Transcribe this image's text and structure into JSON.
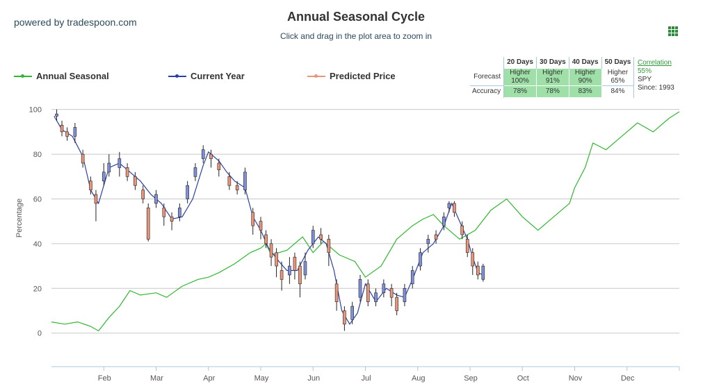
{
  "header": {
    "powered_by": "powered by tradespoon.com",
    "title": "Annual Seasonal Cycle",
    "subtitle": "Click and drag in the plot area to zoom in"
  },
  "legend": [
    {
      "label": "Annual Seasonal",
      "color": "#2eb82e"
    },
    {
      "label": "Current Year",
      "color": "#2c3fa8"
    },
    {
      "label": "Predicted Price",
      "color": "#e8957a"
    }
  ],
  "stats": {
    "headers": [
      "20 Days",
      "30 Days",
      "40 Days",
      "50 Days"
    ],
    "forecast_label": "Forecast",
    "forecast": [
      {
        "dir": "Higher",
        "pct": "100%"
      },
      {
        "dir": "Higher",
        "pct": "91%"
      },
      {
        "dir": "Higher",
        "pct": "90%"
      },
      {
        "dir": "Higher",
        "pct": "65%"
      }
    ],
    "accuracy_label": "Accuracy",
    "accuracy": [
      "78%",
      "78%",
      "83%",
      "84%"
    ],
    "highlight_color": "#9ee0a8"
  },
  "correlation": {
    "label": "Correlation",
    "value": "55%",
    "symbol": "SPY",
    "since": "Since: 1993"
  },
  "chart_data": {
    "type": "line",
    "ylabel": "Percentage",
    "ylim": [
      -15,
      103
    ],
    "yticks": [
      0,
      20,
      40,
      60,
      80,
      100
    ],
    "xlim": [
      0,
      12
    ],
    "xticks": [
      {
        "label": "Feb",
        "x": 1
      },
      {
        "label": "Mar",
        "x": 2
      },
      {
        "label": "Apr",
        "x": 3
      },
      {
        "label": "May",
        "x": 4
      },
      {
        "label": "Jun",
        "x": 5
      },
      {
        "label": "Jul",
        "x": 6
      },
      {
        "label": "Aug",
        "x": 7
      },
      {
        "label": "Sep",
        "x": 8
      },
      {
        "label": "Oct",
        "x": 9
      },
      {
        "label": "Nov",
        "x": 10
      },
      {
        "label": "Dec",
        "x": 11
      }
    ],
    "grid": true,
    "legend_position": "top-left",
    "series": [
      {
        "name": "Annual Seasonal",
        "color": "#2eb82e",
        "points": [
          [
            0,
            5
          ],
          [
            0.25,
            4
          ],
          [
            0.5,
            5
          ],
          [
            0.75,
            3
          ],
          [
            0.9,
            1
          ],
          [
            1.1,
            7
          ],
          [
            1.3,
            12
          ],
          [
            1.5,
            19
          ],
          [
            1.7,
            17
          ],
          [
            2.0,
            18
          ],
          [
            2.2,
            16
          ],
          [
            2.5,
            21
          ],
          [
            2.8,
            24
          ],
          [
            3.0,
            25
          ],
          [
            3.2,
            27
          ],
          [
            3.5,
            31
          ],
          [
            3.8,
            36
          ],
          [
            4.0,
            38
          ],
          [
            4.1,
            40
          ],
          [
            4.2,
            35
          ],
          [
            4.5,
            37
          ],
          [
            4.8,
            43
          ],
          [
            5.0,
            36
          ],
          [
            5.2,
            41
          ],
          [
            5.5,
            35
          ],
          [
            5.8,
            32
          ],
          [
            6.0,
            25
          ],
          [
            6.3,
            30
          ],
          [
            6.6,
            42
          ],
          [
            6.9,
            48
          ],
          [
            7.1,
            51
          ],
          [
            7.3,
            53
          ],
          [
            7.5,
            48
          ],
          [
            7.8,
            42
          ],
          [
            8.1,
            46
          ],
          [
            8.4,
            55
          ],
          [
            8.7,
            60
          ],
          [
            9.0,
            52
          ],
          [
            9.3,
            46
          ],
          [
            9.6,
            52
          ],
          [
            9.9,
            58
          ],
          [
            10.0,
            65
          ],
          [
            10.2,
            74
          ],
          [
            10.35,
            85
          ],
          [
            10.6,
            82
          ],
          [
            10.9,
            88
          ],
          [
            11.2,
            94
          ],
          [
            11.5,
            90
          ],
          [
            11.8,
            96
          ],
          [
            12.0,
            99
          ]
        ]
      },
      {
        "name": "Current Year",
        "color": "#2c3fa8",
        "points": [
          [
            0.05,
            97
          ],
          [
            0.2,
            91
          ],
          [
            0.4,
            88
          ],
          [
            0.6,
            79
          ],
          [
            0.75,
            64
          ],
          [
            0.9,
            58
          ],
          [
            1.1,
            74
          ],
          [
            1.3,
            76
          ],
          [
            1.5,
            72
          ],
          [
            1.7,
            68
          ],
          [
            1.9,
            62
          ],
          [
            2.1,
            58
          ],
          [
            2.3,
            51
          ],
          [
            2.5,
            52
          ],
          [
            2.7,
            60
          ],
          [
            2.9,
            75
          ],
          [
            3.0,
            81
          ],
          [
            3.2,
            77
          ],
          [
            3.35,
            72
          ],
          [
            3.5,
            68
          ],
          [
            3.7,
            65
          ],
          [
            3.85,
            52
          ],
          [
            4.0,
            46
          ],
          [
            4.15,
            38
          ],
          [
            4.35,
            32
          ],
          [
            4.5,
            28
          ],
          [
            4.7,
            28
          ],
          [
            4.9,
            37
          ],
          [
            5.1,
            43
          ],
          [
            5.25,
            40
          ],
          [
            5.4,
            28
          ],
          [
            5.55,
            10
          ],
          [
            5.7,
            4
          ],
          [
            5.85,
            9
          ],
          [
            6.0,
            22
          ],
          [
            6.2,
            14
          ],
          [
            6.4,
            20
          ],
          [
            6.6,
            17
          ],
          [
            6.75,
            16
          ],
          [
            6.9,
            24
          ],
          [
            7.1,
            36
          ],
          [
            7.3,
            40
          ],
          [
            7.5,
            48
          ],
          [
            7.65,
            58
          ],
          [
            7.8,
            50
          ],
          [
            7.95,
            42
          ],
          [
            8.05,
            34
          ],
          [
            8.15,
            27
          ],
          [
            8.25,
            26
          ]
        ]
      }
    ],
    "candles": [
      {
        "x": 0.1,
        "o": 97,
        "c": 98,
        "h": 100,
        "l": 95,
        "up": true
      },
      {
        "x": 0.2,
        "o": 93,
        "c": 90,
        "h": 95,
        "l": 88,
        "up": false
      },
      {
        "x": 0.3,
        "o": 90,
        "c": 88,
        "h": 92,
        "l": 86,
        "up": false
      },
      {
        "x": 0.45,
        "o": 88,
        "c": 92,
        "h": 94,
        "l": 85,
        "up": true
      },
      {
        "x": 0.6,
        "o": 80,
        "c": 76,
        "h": 82,
        "l": 74,
        "up": false
      },
      {
        "x": 0.75,
        "o": 68,
        "c": 64,
        "h": 70,
        "l": 62,
        "up": false
      },
      {
        "x": 0.85,
        "o": 62,
        "c": 58,
        "h": 64,
        "l": 50,
        "up": false
      },
      {
        "x": 1.0,
        "o": 68,
        "c": 72,
        "h": 76,
        "l": 66,
        "up": true
      },
      {
        "x": 1.1,
        "o": 72,
        "c": 76,
        "h": 80,
        "l": 70,
        "up": true
      },
      {
        "x": 1.3,
        "o": 74,
        "c": 78,
        "h": 81,
        "l": 70,
        "up": true
      },
      {
        "x": 1.45,
        "o": 74,
        "c": 70,
        "h": 76,
        "l": 68,
        "up": false
      },
      {
        "x": 1.6,
        "o": 70,
        "c": 66,
        "h": 72,
        "l": 64,
        "up": false
      },
      {
        "x": 1.75,
        "o": 64,
        "c": 60,
        "h": 66,
        "l": 58,
        "up": false
      },
      {
        "x": 1.85,
        "o": 56,
        "c": 42,
        "h": 58,
        "l": 41,
        "up": false
      },
      {
        "x": 2.0,
        "o": 58,
        "c": 62,
        "h": 64,
        "l": 56,
        "up": true
      },
      {
        "x": 2.15,
        "o": 56,
        "c": 52,
        "h": 58,
        "l": 48,
        "up": false
      },
      {
        "x": 2.3,
        "o": 52,
        "c": 50,
        "h": 54,
        "l": 46,
        "up": false
      },
      {
        "x": 2.45,
        "o": 52,
        "c": 56,
        "h": 58,
        "l": 50,
        "up": true
      },
      {
        "x": 2.6,
        "o": 60,
        "c": 66,
        "h": 68,
        "l": 58,
        "up": true
      },
      {
        "x": 2.75,
        "o": 70,
        "c": 74,
        "h": 76,
        "l": 68,
        "up": true
      },
      {
        "x": 2.9,
        "o": 78,
        "c": 82,
        "h": 84,
        "l": 76,
        "up": true
      },
      {
        "x": 3.05,
        "o": 80,
        "c": 78,
        "h": 82,
        "l": 74,
        "up": false
      },
      {
        "x": 3.2,
        "o": 76,
        "c": 73,
        "h": 78,
        "l": 70,
        "up": false
      },
      {
        "x": 3.4,
        "o": 70,
        "c": 66,
        "h": 72,
        "l": 64,
        "up": false
      },
      {
        "x": 3.55,
        "o": 66,
        "c": 64,
        "h": 68,
        "l": 62,
        "up": false
      },
      {
        "x": 3.7,
        "o": 64,
        "c": 72,
        "h": 74,
        "l": 62,
        "up": true
      },
      {
        "x": 3.85,
        "o": 54,
        "c": 48,
        "h": 56,
        "l": 44,
        "up": false
      },
      {
        "x": 4.0,
        "o": 50,
        "c": 46,
        "h": 52,
        "l": 42,
        "up": false
      },
      {
        "x": 4.1,
        "o": 44,
        "c": 40,
        "h": 46,
        "l": 38,
        "up": false
      },
      {
        "x": 4.2,
        "o": 40,
        "c": 34,
        "h": 42,
        "l": 30,
        "up": false
      },
      {
        "x": 4.3,
        "o": 36,
        "c": 30,
        "h": 38,
        "l": 25,
        "up": false
      },
      {
        "x": 4.4,
        "o": 28,
        "c": 24,
        "h": 32,
        "l": 19,
        "up": false
      },
      {
        "x": 4.55,
        "o": 26,
        "c": 30,
        "h": 34,
        "l": 22,
        "up": true
      },
      {
        "x": 4.65,
        "o": 34,
        "c": 28,
        "h": 36,
        "l": 24,
        "up": false
      },
      {
        "x": 4.75,
        "o": 30,
        "c": 22,
        "h": 32,
        "l": 16,
        "up": false
      },
      {
        "x": 4.85,
        "o": 26,
        "c": 32,
        "h": 36,
        "l": 24,
        "up": true
      },
      {
        "x": 5.0,
        "o": 40,
        "c": 46,
        "h": 48,
        "l": 38,
        "up": true
      },
      {
        "x": 5.15,
        "o": 44,
        "c": 42,
        "h": 47,
        "l": 40,
        "up": false
      },
      {
        "x": 5.3,
        "o": 42,
        "c": 36,
        "h": 44,
        "l": 30,
        "up": false
      },
      {
        "x": 5.45,
        "o": 22,
        "c": 14,
        "h": 24,
        "l": 10,
        "up": false
      },
      {
        "x": 5.6,
        "o": 10,
        "c": 4,
        "h": 12,
        "l": 1,
        "up": false
      },
      {
        "x": 5.75,
        "o": 6,
        "c": 12,
        "h": 14,
        "l": 4,
        "up": true
      },
      {
        "x": 5.9,
        "o": 16,
        "c": 24,
        "h": 26,
        "l": 14,
        "up": true
      },
      {
        "x": 6.05,
        "o": 22,
        "c": 14,
        "h": 24,
        "l": 12,
        "up": false
      },
      {
        "x": 6.2,
        "o": 14,
        "c": 18,
        "h": 20,
        "l": 12,
        "up": true
      },
      {
        "x": 6.35,
        "o": 18,
        "c": 22,
        "h": 24,
        "l": 16,
        "up": true
      },
      {
        "x": 6.5,
        "o": 20,
        "c": 16,
        "h": 22,
        "l": 12,
        "up": false
      },
      {
        "x": 6.6,
        "o": 16,
        "c": 10,
        "h": 18,
        "l": 8,
        "up": false
      },
      {
        "x": 6.75,
        "o": 14,
        "c": 20,
        "h": 22,
        "l": 12,
        "up": true
      },
      {
        "x": 6.9,
        "o": 22,
        "c": 28,
        "h": 30,
        "l": 20,
        "up": true
      },
      {
        "x": 7.05,
        "o": 30,
        "c": 36,
        "h": 38,
        "l": 28,
        "up": true
      },
      {
        "x": 7.2,
        "o": 40,
        "c": 42,
        "h": 44,
        "l": 36,
        "up": true
      },
      {
        "x": 7.35,
        "o": 44,
        "c": 42,
        "h": 46,
        "l": 40,
        "up": false
      },
      {
        "x": 7.5,
        "o": 48,
        "c": 52,
        "h": 54,
        "l": 46,
        "up": true
      },
      {
        "x": 7.6,
        "o": 56,
        "c": 58,
        "h": 59,
        "l": 54,
        "up": true
      },
      {
        "x": 7.7,
        "o": 58,
        "c": 54,
        "h": 59,
        "l": 52,
        "up": false
      },
      {
        "x": 7.85,
        "o": 48,
        "c": 44,
        "h": 50,
        "l": 42,
        "up": false
      },
      {
        "x": 7.95,
        "o": 42,
        "c": 36,
        "h": 44,
        "l": 34,
        "up": false
      },
      {
        "x": 8.05,
        "o": 36,
        "c": 30,
        "h": 38,
        "l": 26,
        "up": false
      },
      {
        "x": 8.15,
        "o": 30,
        "c": 26,
        "h": 32,
        "l": 24,
        "up": false
      },
      {
        "x": 8.25,
        "o": 24,
        "c": 30,
        "h": 31,
        "l": 23,
        "up": true
      }
    ]
  }
}
